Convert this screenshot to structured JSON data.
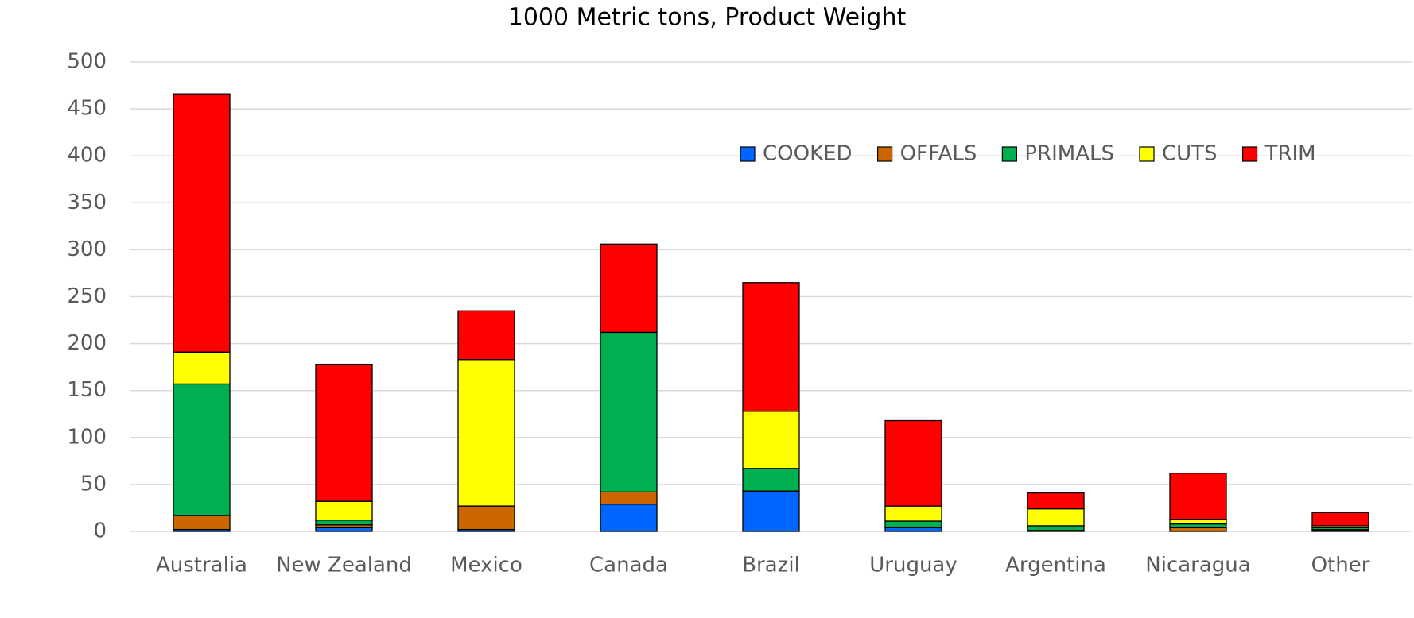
{
  "chart_data": {
    "type": "stacked-bar",
    "title": "1000 Metric tons, Product Weight",
    "categories": [
      "Australia",
      "New Zealand",
      "Mexico",
      "Canada",
      "Brazil",
      "Uruguay",
      "Argentina",
      "Nicaragua",
      "Other"
    ],
    "series": [
      {
        "name": "COOKED",
        "color": "#0066ff",
        "values": [
          2,
          4,
          2,
          29,
          43,
          4,
          0,
          0,
          1
        ]
      },
      {
        "name": "OFFALS",
        "color": "#cc6600",
        "values": [
          15,
          3,
          25,
          13,
          0,
          0,
          1,
          4,
          1
        ]
      },
      {
        "name": "PRIMALS",
        "color": "#00b050",
        "values": [
          140,
          5,
          0,
          170,
          24,
          7,
          5,
          4,
          2
        ]
      },
      {
        "name": "CUTS",
        "color": "#ffff00",
        "values": [
          34,
          20,
          156,
          0,
          61,
          16,
          18,
          5,
          2
        ]
      },
      {
        "name": "TRIM",
        "color": "#ff0000",
        "values": [
          275,
          146,
          52,
          94,
          137,
          91,
          17,
          49,
          14
        ]
      }
    ],
    "ylim": [
      0,
      500
    ],
    "yticks": [
      0,
      50,
      100,
      150,
      200,
      250,
      300,
      350,
      400,
      450,
      500
    ],
    "grid": true,
    "legend": "upper right"
  }
}
